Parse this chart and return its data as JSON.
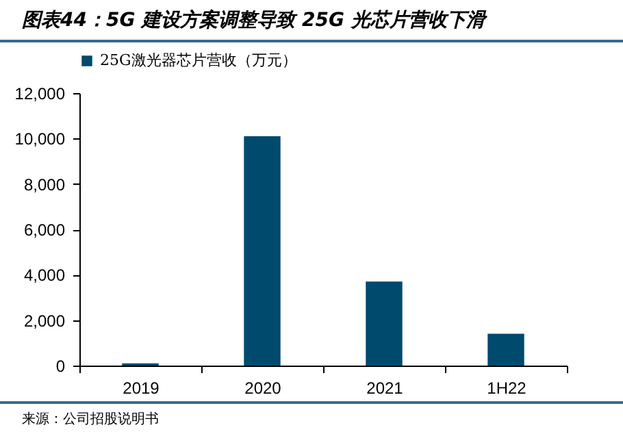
{
  "chart_data": {
    "type": "bar",
    "title": "图表44：5G 建设方案调整导致 25G 光芯片营收下滑",
    "categories": [
      "2019",
      "2020",
      "2021",
      "1H22"
    ],
    "series": [
      {
        "name": "25G激光器芯片营收（万元）",
        "color": "#004a6e",
        "values": [
          100,
          10100,
          3700,
          1400
        ]
      }
    ],
    "ylim": [
      0,
      12000
    ],
    "yticks": [
      0,
      {
        "value": 2000,
        "label": "2,000"
      },
      {
        "value": 4000,
        "label": "4,000"
      },
      {
        "value": 6000,
        "label": "6,000"
      },
      {
        "value": 8000,
        "label": "8,000"
      },
      {
        "value": 10000,
        "label": "10,000"
      },
      {
        "value": 12000,
        "label": "12,000"
      }
    ],
    "grid": false,
    "legend": "top",
    "annotations": [
      "来源：公司招股说明书"
    ]
  }
}
